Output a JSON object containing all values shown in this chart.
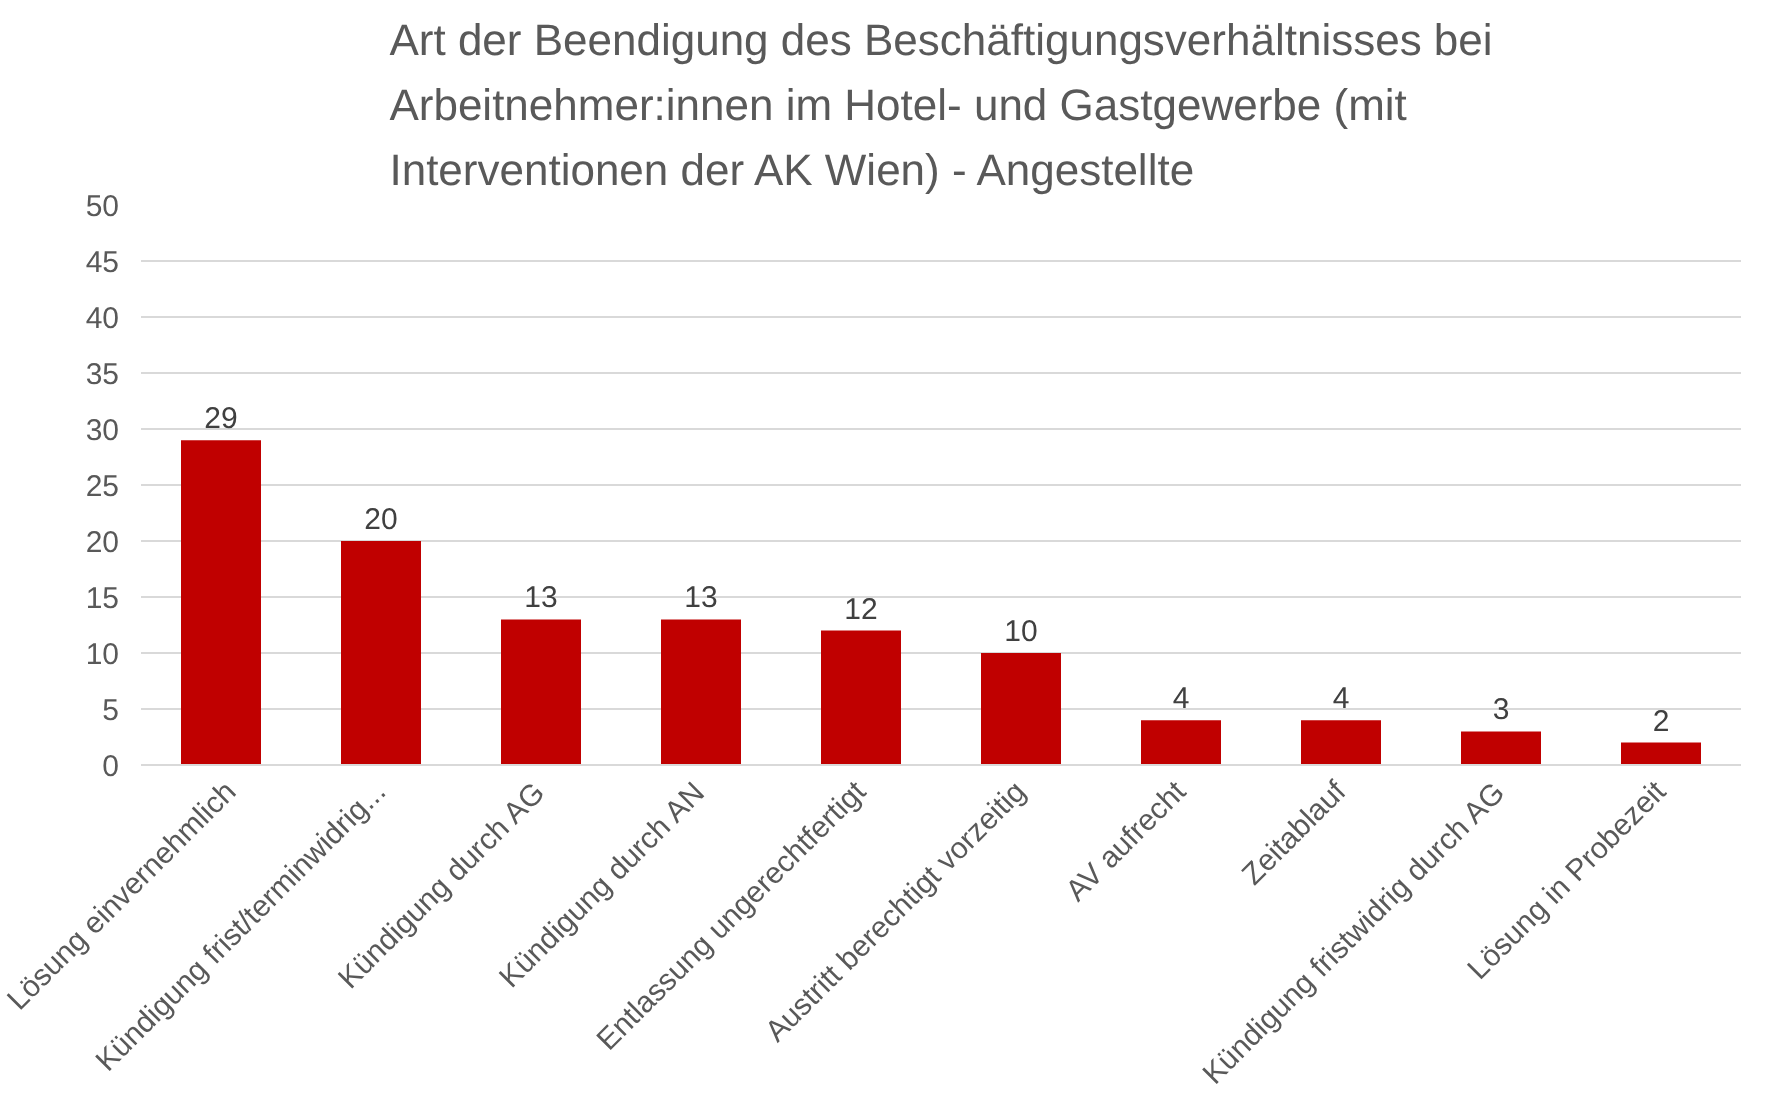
{
  "chart_data": {
    "type": "bar",
    "title": "Art der Beendigung des Beschäftigungsverhältnisses bei Arbeitnehmer:innen im Hotel- und Gastgewerbe (mit Interventionen der AK Wien) - Angestellte",
    "categories": [
      "Lösung einvernehmlich",
      "Kündigung frist/terminwidrig...",
      "Kündigung durch AG",
      "Kündigung durch AN",
      "Entlassung ungerechtfertigt",
      "Austritt berechtigt vorzeitig",
      "AV aufrecht",
      "Zeitablauf",
      "Kündigung fristwidrig durch AG",
      "Lösung in Probezeit"
    ],
    "values": [
      29,
      20,
      13,
      13,
      12,
      10,
      4,
      4,
      3,
      2
    ],
    "color": "#c00000",
    "ylim": [
      0,
      50
    ],
    "yticks": [
      0,
      5,
      10,
      15,
      20,
      25,
      30,
      35,
      40,
      45,
      50
    ],
    "grid": "y",
    "data_labels": true
  }
}
